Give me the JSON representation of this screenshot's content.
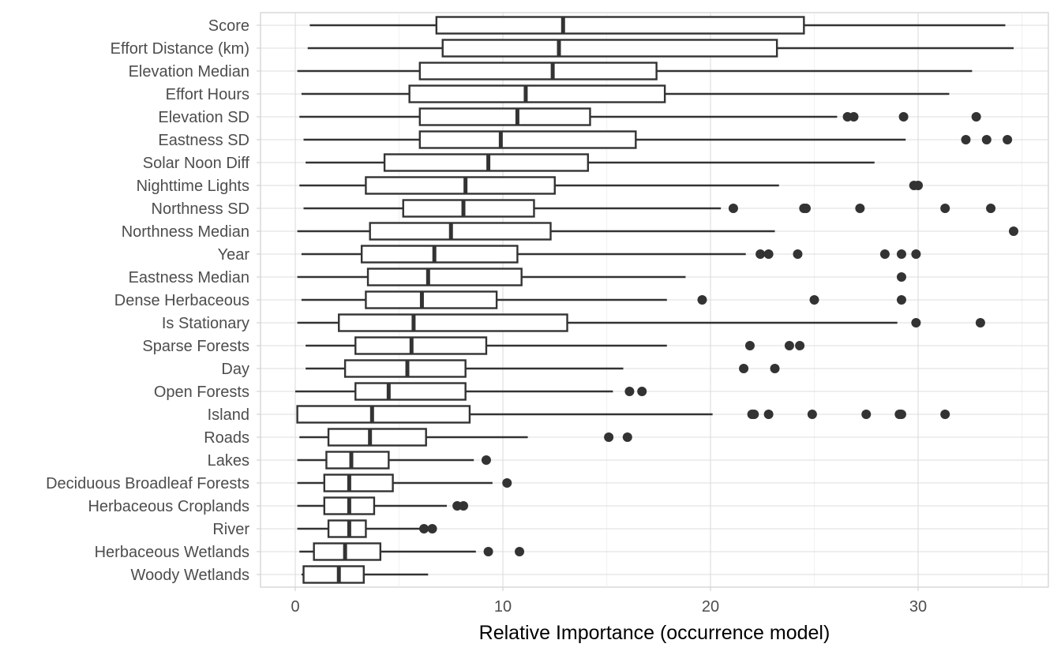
{
  "chart_data": {
    "type": "boxplot",
    "title": "",
    "xlabel": "Relative Importance (occurrence model)",
    "ylabel": "",
    "xlim": [
      -1.7,
      36.3
    ],
    "xticks": [
      0,
      10,
      20,
      30
    ],
    "xtick_labels": [
      "0",
      "10",
      "20",
      "30"
    ],
    "grid": true,
    "legend": "none",
    "colors": {
      "box_stroke": "#333333",
      "box_fill": "#ffffff",
      "grid": "#dcdcdc"
    },
    "categories": [
      {
        "label": "Score",
        "min": 0.7,
        "q1": 6.8,
        "median": 12.9,
        "q3": 24.5,
        "max": 34.2,
        "outliers": []
      },
      {
        "label": "Effort Distance (km)",
        "min": 0.6,
        "q1": 7.1,
        "median": 12.7,
        "q3": 23.2,
        "max": 34.6,
        "outliers": []
      },
      {
        "label": "Elevation Median",
        "min": 0.1,
        "q1": 6.0,
        "median": 12.4,
        "q3": 17.4,
        "max": 32.6,
        "outliers": []
      },
      {
        "label": "Effort Hours",
        "min": 0.3,
        "q1": 5.5,
        "median": 11.1,
        "q3": 17.8,
        "max": 31.5,
        "outliers": []
      },
      {
        "label": "Elevation SD",
        "min": 0.2,
        "q1": 6.0,
        "median": 10.7,
        "q3": 14.2,
        "max": 26.1,
        "outliers": [
          26.6,
          26.9,
          29.3,
          32.8
        ]
      },
      {
        "label": "Eastness SD",
        "min": 0.4,
        "q1": 6.0,
        "median": 9.9,
        "q3": 16.4,
        "max": 29.4,
        "outliers": [
          32.3,
          33.3,
          34.3
        ]
      },
      {
        "label": "Solar Noon Diff",
        "min": 0.5,
        "q1": 4.3,
        "median": 9.3,
        "q3": 14.1,
        "max": 27.9,
        "outliers": []
      },
      {
        "label": "Nighttime Lights",
        "min": 0.2,
        "q1": 3.4,
        "median": 8.2,
        "q3": 12.5,
        "max": 23.3,
        "outliers": [
          29.8,
          30.0
        ]
      },
      {
        "label": "Northness SD",
        "min": 0.4,
        "q1": 5.2,
        "median": 8.1,
        "q3": 11.5,
        "max": 20.5,
        "outliers": [
          21.1,
          24.5,
          24.6,
          27.2,
          31.3,
          33.5
        ]
      },
      {
        "label": "Northness Median",
        "min": 0.1,
        "q1": 3.6,
        "median": 7.5,
        "q3": 12.3,
        "max": 23.1,
        "outliers": [
          34.6
        ]
      },
      {
        "label": "Year",
        "min": 0.3,
        "q1": 3.2,
        "median": 6.7,
        "q3": 10.7,
        "max": 21.7,
        "outliers": [
          22.4,
          22.8,
          24.2,
          28.4,
          29.2,
          29.9
        ]
      },
      {
        "label": "Eastness Median",
        "min": 0.1,
        "q1": 3.5,
        "median": 6.4,
        "q3": 10.9,
        "max": 18.8,
        "outliers": [
          29.2
        ]
      },
      {
        "label": "Dense Herbaceous",
        "min": 0.3,
        "q1": 3.4,
        "median": 6.1,
        "q3": 9.7,
        "max": 17.9,
        "outliers": [
          19.6,
          25.0,
          29.2
        ]
      },
      {
        "label": "Is Stationary",
        "min": 0.1,
        "q1": 2.1,
        "median": 5.7,
        "q3": 13.1,
        "max": 29.0,
        "outliers": [
          29.9,
          33.0
        ]
      },
      {
        "label": "Sparse Forests",
        "min": 0.5,
        "q1": 2.9,
        "median": 5.6,
        "q3": 9.2,
        "max": 17.9,
        "outliers": [
          21.9,
          23.8,
          24.3
        ]
      },
      {
        "label": "Day",
        "min": 0.5,
        "q1": 2.4,
        "median": 5.4,
        "q3": 8.2,
        "max": 15.8,
        "outliers": [
          21.6,
          23.1
        ]
      },
      {
        "label": "Open Forests",
        "min": 0.0,
        "q1": 2.9,
        "median": 4.5,
        "q3": 8.2,
        "max": 15.3,
        "outliers": [
          16.1,
          16.7
        ]
      },
      {
        "label": "Island",
        "min": 0.1,
        "q1": 0.1,
        "median": 3.7,
        "q3": 8.4,
        "max": 20.1,
        "outliers": [
          22.0,
          22.1,
          22.8,
          24.9,
          27.5,
          29.1,
          29.2,
          31.3
        ]
      },
      {
        "label": "Roads",
        "min": 0.2,
        "q1": 1.6,
        "median": 3.6,
        "q3": 6.3,
        "max": 11.2,
        "outliers": [
          15.1,
          16.0
        ]
      },
      {
        "label": "Lakes",
        "min": 0.1,
        "q1": 1.5,
        "median": 2.7,
        "q3": 4.5,
        "max": 8.6,
        "outliers": [
          9.2
        ]
      },
      {
        "label": "Deciduous Broadleaf Forests",
        "min": 0.1,
        "q1": 1.4,
        "median": 2.6,
        "q3": 4.7,
        "max": 9.5,
        "outliers": [
          10.2
        ]
      },
      {
        "label": "Herbaceous Croplands",
        "min": 0.1,
        "q1": 1.4,
        "median": 2.6,
        "q3": 3.8,
        "max": 7.3,
        "outliers": [
          7.8,
          8.1
        ]
      },
      {
        "label": "River",
        "min": 0.1,
        "q1": 1.6,
        "median": 2.6,
        "q3": 3.4,
        "max": 6.1,
        "outliers": [
          6.2,
          6.6
        ]
      },
      {
        "label": "Herbaceous Wetlands",
        "min": 0.2,
        "q1": 0.9,
        "median": 2.4,
        "q3": 4.1,
        "max": 8.7,
        "outliers": [
          9.3,
          10.8
        ]
      },
      {
        "label": "Woody Wetlands",
        "min": 0.3,
        "q1": 0.4,
        "median": 2.1,
        "q3": 3.3,
        "max": 6.4,
        "outliers": []
      }
    ]
  }
}
